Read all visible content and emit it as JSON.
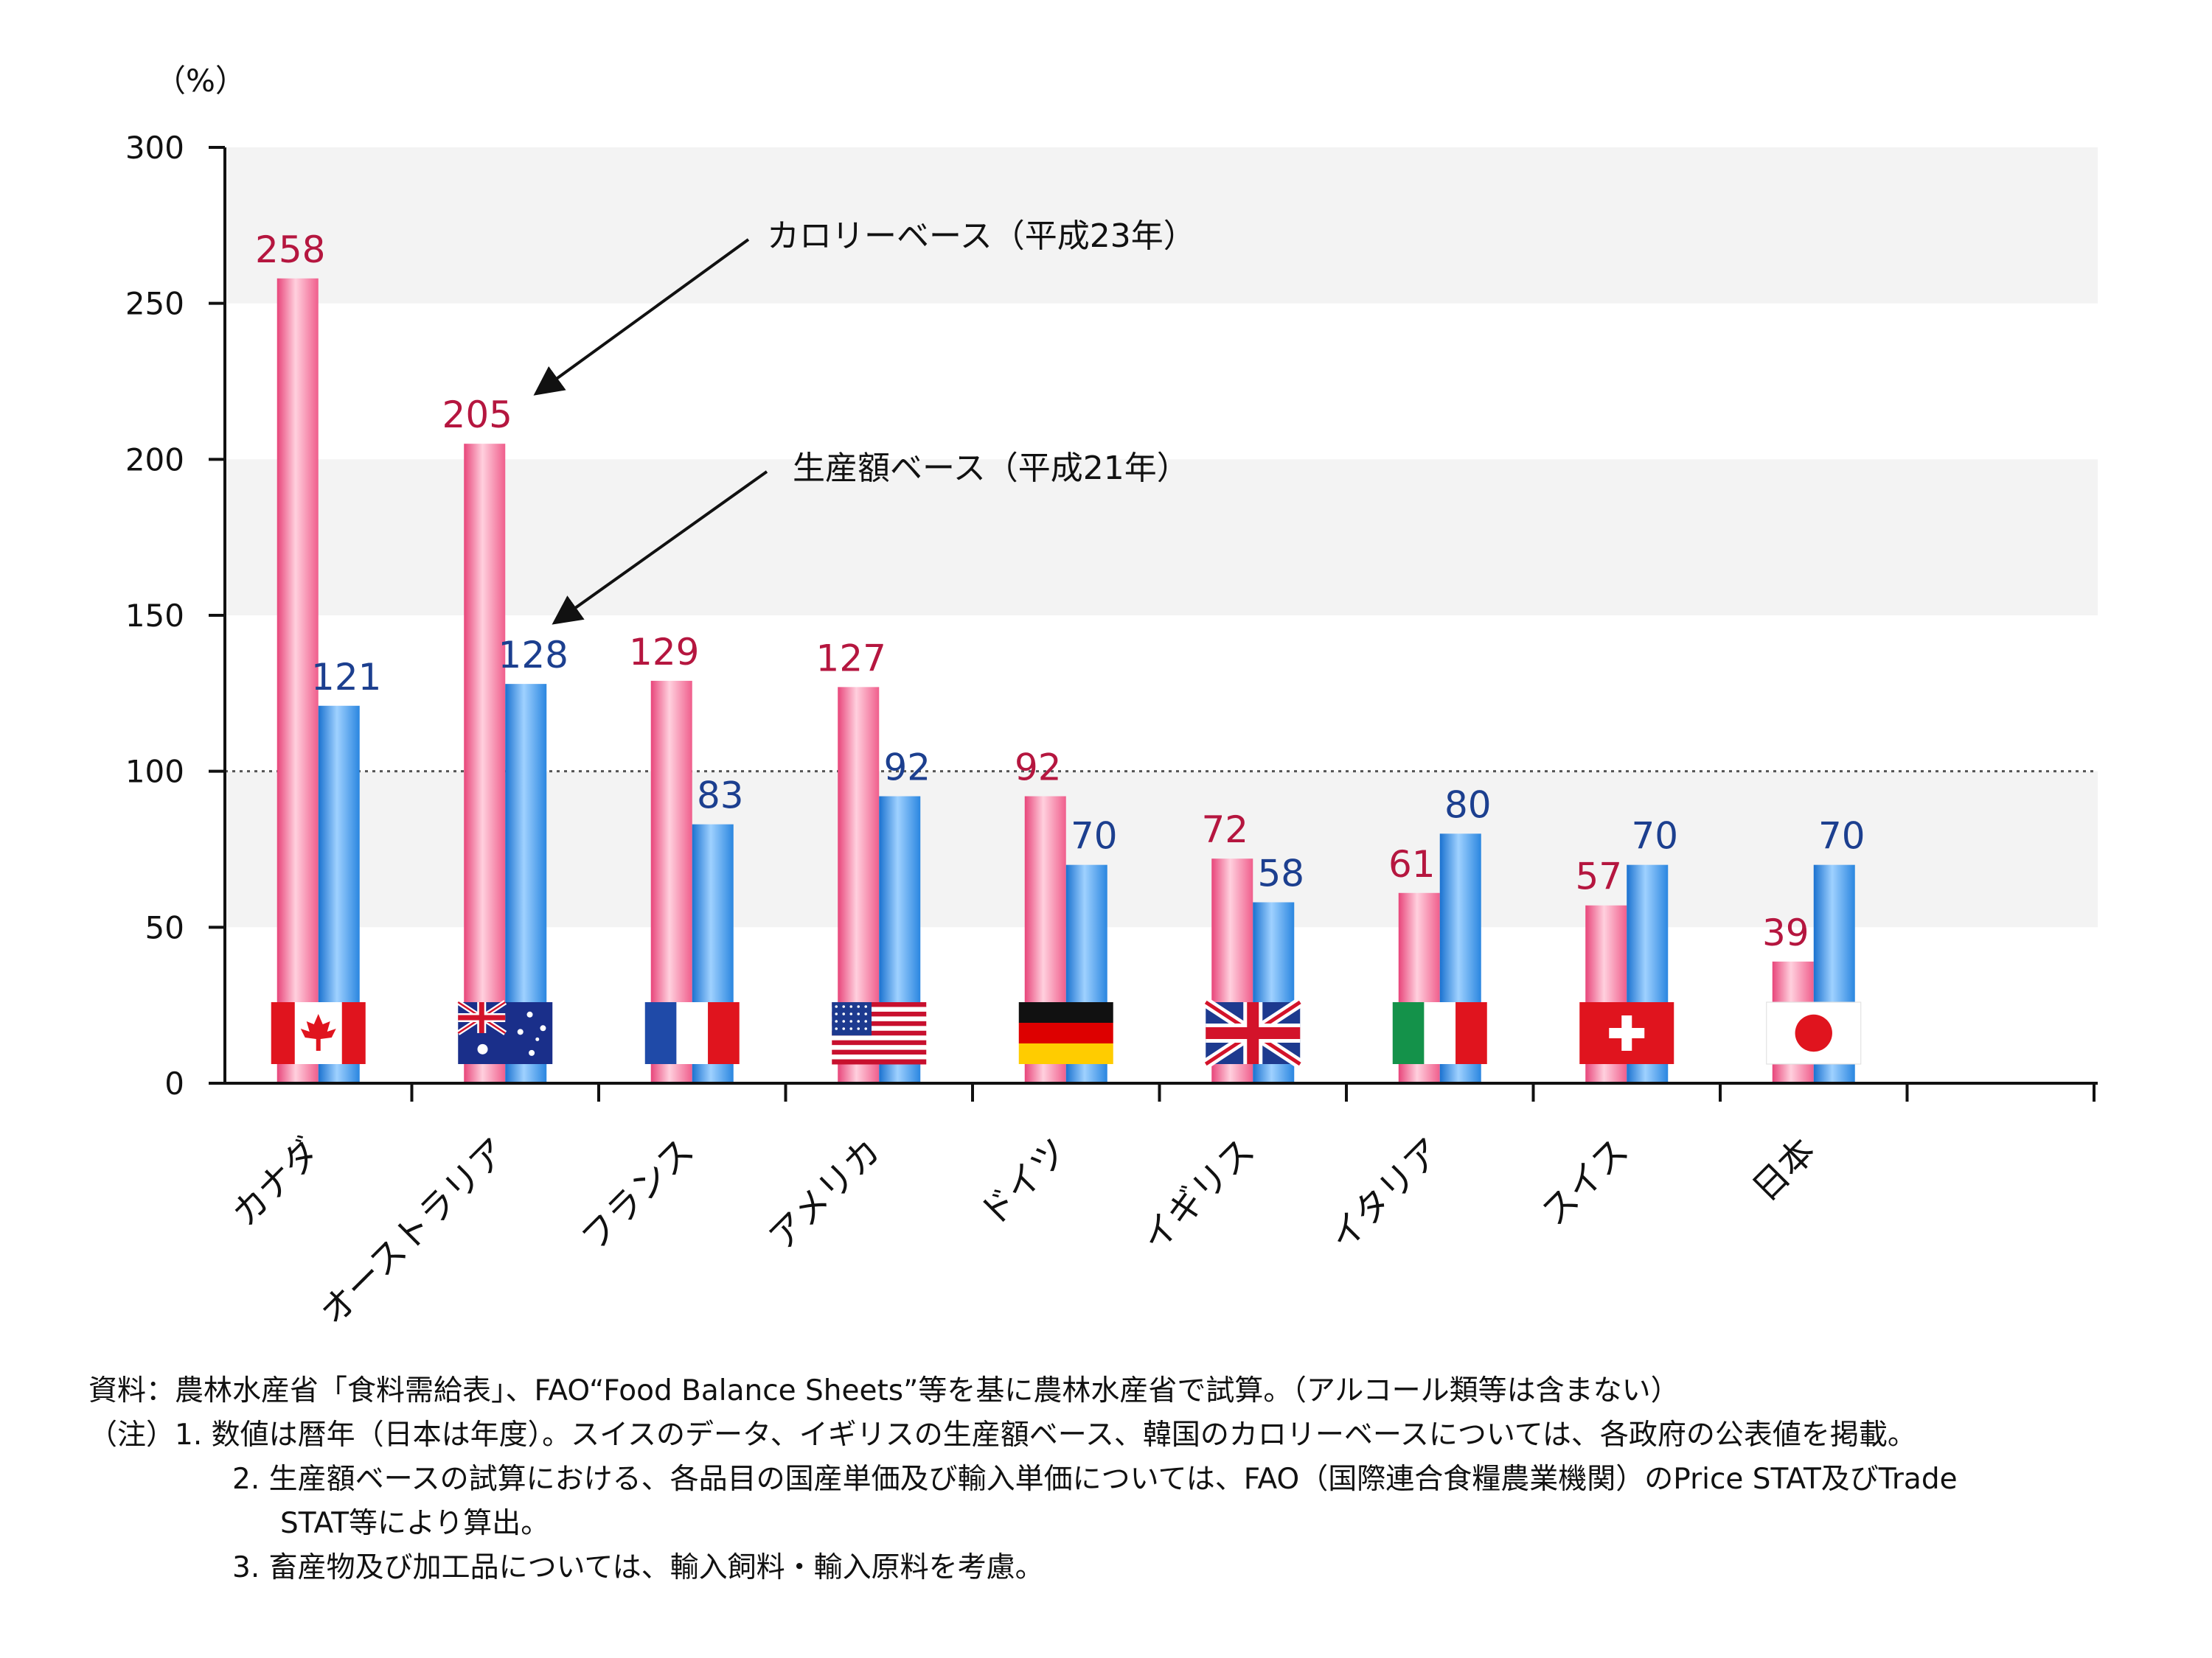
{
  "chart_data": {
    "type": "bar",
    "unit_label": "（%）",
    "ylim": [
      0,
      300
    ],
    "yticks": [
      0,
      50,
      100,
      150,
      200,
      250,
      300
    ],
    "reference_line": 100,
    "categories": [
      "カナダ",
      "オーストラリア",
      "フランス",
      "アメリカ",
      "ドイツ",
      "イギリス",
      "イタリア",
      "スイス",
      "日本"
    ],
    "flag_icons": [
      "canada-flag-icon",
      "australia-flag-icon",
      "france-flag-icon",
      "usa-flag-icon",
      "germany-flag-icon",
      "uk-flag-icon",
      "italy-flag-icon",
      "switzerland-flag-icon",
      "japan-flag-icon"
    ],
    "series": [
      {
        "name": "カロリーベース（平成23年）",
        "values": [
          258,
          205,
          129,
          127,
          92,
          72,
          61,
          57,
          39
        ],
        "color": "#f06a93",
        "label_color": "#b5163f"
      },
      {
        "name": "生産額ベース（平成21年）",
        "values": [
          121,
          128,
          83,
          92,
          70,
          58,
          80,
          70,
          70
        ],
        "color": "#2e8fe6",
        "label_color": "#1c3f8f"
      }
    ],
    "grid": "alternating-bands"
  },
  "notes": {
    "source": "資料：農林水産省「食料需給表」、FAO“Food Balance Sheets”等を基に農林水産省で試算。（アルコール類等は含まない）",
    "note1": "（注）1. 数値は暦年（日本は年度）。スイスのデータ、イギリスの生産額ベース、韓国のカロリーベースについては、各政府の公表値を掲載。",
    "note2a": "2. 生産額ベースの試算における、各品目の国産単価及び輸入単価については、FAO（国際連合食糧農業機関）のPrice STAT及びTrade",
    "note2b": "STAT等により算出。",
    "note3": "3. 畜産物及び加工品については、輸入飼料・輸入原料を考慮。"
  }
}
